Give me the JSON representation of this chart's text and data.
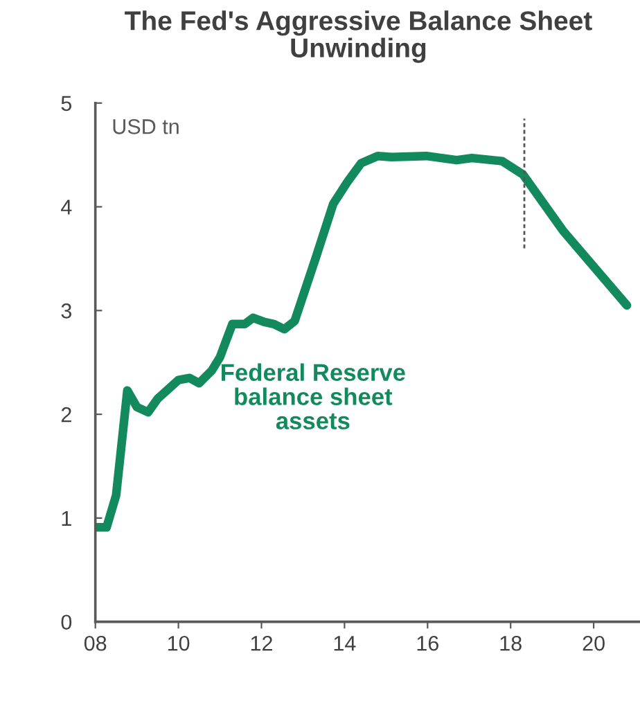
{
  "chart_data": {
    "type": "line",
    "title": "The Fed's Aggressive Balance Sheet Unwinding",
    "annotations": [
      "USD tn"
    ],
    "series": [
      {
        "name": "Federal Reserve balance sheet assets",
        "color": "#138a5e",
        "x": [
          2008.0,
          2008.27,
          2008.5,
          2008.77,
          2009.0,
          2009.27,
          2009.5,
          2010.0,
          2010.27,
          2010.5,
          2010.8,
          2011.0,
          2011.3,
          2011.6,
          2011.8,
          2012.07,
          2012.3,
          2012.55,
          2012.8,
          2013.3,
          2013.73,
          2014.07,
          2014.4,
          2014.8,
          2015.13,
          2015.97,
          2016.7,
          2017.07,
          2017.8,
          2018.3,
          2019.26,
          2020.8
        ],
        "values": [
          0.91,
          0.91,
          1.22,
          2.23,
          2.07,
          2.02,
          2.15,
          2.33,
          2.35,
          2.3,
          2.42,
          2.55,
          2.87,
          2.87,
          2.93,
          2.89,
          2.87,
          2.82,
          2.9,
          3.5,
          4.03,
          4.24,
          4.42,
          4.49,
          4.48,
          4.49,
          4.45,
          4.47,
          4.44,
          4.31,
          3.77,
          3.05
        ]
      }
    ],
    "xlim": [
      2008,
      2021.1
    ],
    "xticks": [
      {
        "value": 2008,
        "label": "08"
      },
      {
        "value": 2010,
        "label": "10"
      },
      {
        "value": 2012,
        "label": "12"
      },
      {
        "value": 2014,
        "label": "14"
      },
      {
        "value": 2016,
        "label": "16"
      },
      {
        "value": 2018,
        "label": "18"
      },
      {
        "value": 2020,
        "label": "20"
      }
    ],
    "ylim": [
      0,
      5
    ],
    "yticks": [
      0,
      1,
      2,
      3,
      4,
      5
    ],
    "ref_lines": [
      {
        "axis": "x",
        "value": 2018.33,
        "color": "#555555",
        "line_style": "dashed"
      }
    ],
    "grid": false,
    "legend": false,
    "marker": "none",
    "line_style": "solid"
  }
}
